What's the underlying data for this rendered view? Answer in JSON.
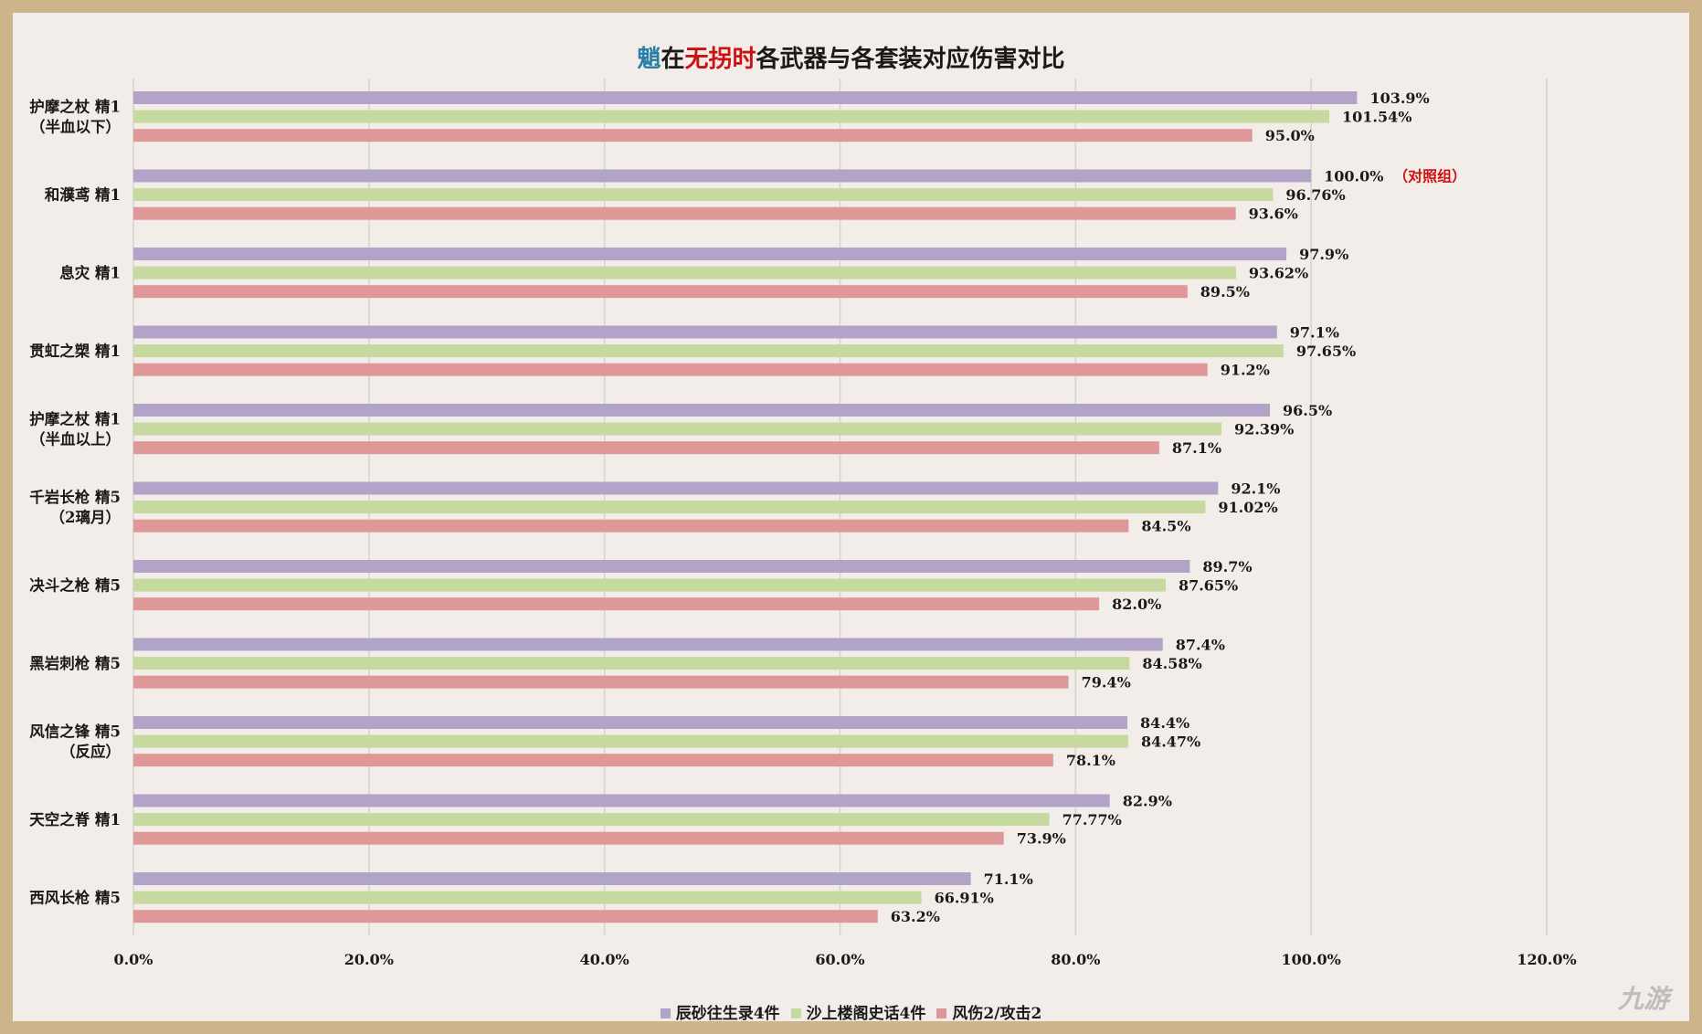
{
  "title": {
    "name": "魈",
    "part1": "在",
    "highlight": "无拐时",
    "rest": "各武器与各套装对应伤害对比"
  },
  "watermark": "九游",
  "chart_data": {
    "type": "bar",
    "orientation": "horizontal",
    "title": "魈在无拐时各武器与各套装对应伤害对比",
    "categories": [
      [
        "护摩之杖 精1",
        "（半血以下）"
      ],
      [
        "和濮鸢 精1"
      ],
      [
        "息灾 精1"
      ],
      [
        "贯虹之槊 精1"
      ],
      [
        "护摩之杖 精1",
        "（半血以上）"
      ],
      [
        "千岩长枪 精5",
        "（2璃月）"
      ],
      [
        "决斗之枪 精5"
      ],
      [
        "黑岩刺枪 精5"
      ],
      [
        "风信之锋 精5",
        "（反应）"
      ],
      [
        "天空之脊 精1"
      ],
      [
        "西风长枪 精5"
      ]
    ],
    "series": [
      {
        "name": "辰砂往生录4件",
        "color": "#b2a3c9",
        "values": [
          103.9,
          100.0,
          97.9,
          97.1,
          96.5,
          92.1,
          89.7,
          87.4,
          84.4,
          82.9,
          71.1
        ],
        "labels": [
          "103.9%",
          "100.0%",
          "97.9%",
          "97.1%",
          "96.5%",
          "92.1%",
          "89.7%",
          "87.4%",
          "84.4%",
          "82.9%",
          "71.1%"
        ]
      },
      {
        "name": "沙上楼阁史话4件",
        "color": "#c6d99e",
        "values": [
          101.54,
          96.76,
          93.62,
          97.65,
          92.39,
          91.02,
          87.65,
          84.58,
          84.47,
          77.77,
          66.91
        ],
        "labels": [
          "101.54%",
          "96.76%",
          "93.62%",
          "97.65%",
          "92.39%",
          "91.02%",
          "87.65%",
          "84.58%",
          "84.47%",
          "77.77%",
          "66.91%"
        ]
      },
      {
        "name": "风伤2/攻击2",
        "color": "#df9898",
        "values": [
          95.0,
          93.6,
          89.5,
          91.2,
          87.1,
          84.5,
          82.0,
          79.4,
          78.1,
          73.9,
          63.2
        ],
        "labels": [
          "95.0%",
          "93.6%",
          "89.5%",
          "91.2%",
          "87.1%",
          "84.5%",
          "82.0%",
          "79.4%",
          "78.1%",
          "73.9%",
          "63.2%"
        ]
      }
    ],
    "annotation": {
      "category_index": 1,
      "text": "（对照组）",
      "color": "#cc1111"
    },
    "xlim": [
      0,
      120
    ],
    "x_ticks": [
      "0.0%",
      "20.0%",
      "40.0%",
      "60.0%",
      "80.0%",
      "100.0%",
      "120.0%"
    ],
    "grid": "vertical",
    "legend_position": "bottom"
  }
}
